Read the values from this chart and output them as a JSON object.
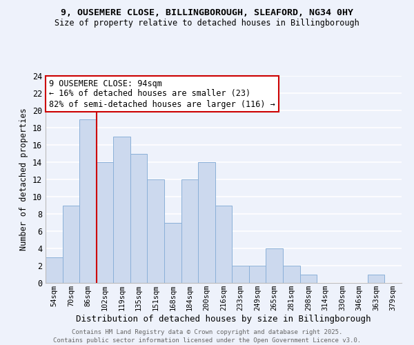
{
  "title": "9, OUSEMERE CLOSE, BILLINGBOROUGH, SLEAFORD, NG34 0HY",
  "subtitle": "Size of property relative to detached houses in Billingborough",
  "xlabel": "Distribution of detached houses by size in Billingborough",
  "ylabel": "Number of detached properties",
  "bar_color": "#ccd9ee",
  "bar_edge_color": "#8ab0d8",
  "background_color": "#eef2fb",
  "grid_color": "#ffffff",
  "bin_labels": [
    "54sqm",
    "70sqm",
    "86sqm",
    "102sqm",
    "119sqm",
    "135sqm",
    "151sqm",
    "168sqm",
    "184sqm",
    "200sqm",
    "216sqm",
    "233sqm",
    "249sqm",
    "265sqm",
    "281sqm",
    "298sqm",
    "314sqm",
    "330sqm",
    "346sqm",
    "363sqm",
    "379sqm"
  ],
  "bar_values": [
    3,
    9,
    19,
    14,
    17,
    15,
    12,
    7,
    12,
    14,
    9,
    2,
    2,
    4,
    2,
    1,
    0,
    0,
    0,
    1,
    0
  ],
  "ylim": [
    0,
    24
  ],
  "yticks": [
    0,
    2,
    4,
    6,
    8,
    10,
    12,
    14,
    16,
    18,
    20,
    22,
    24
  ],
  "annotation_title": "9 OUSEMERE CLOSE: 94sqm",
  "annotation_line1": "← 16% of detached houses are smaller (23)",
  "annotation_line2": "82% of semi-detached houses are larger (116) →",
  "annotation_box_color": "#ffffff",
  "annotation_box_edge_color": "#cc0000",
  "property_line_color": "#cc0000",
  "footer_line1": "Contains HM Land Registry data © Crown copyright and database right 2025.",
  "footer_line2": "Contains public sector information licensed under the Open Government Licence v3.0.",
  "title_fontsize": 9.5,
  "subtitle_fontsize": 8.5
}
